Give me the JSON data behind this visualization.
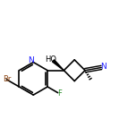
{
  "bg_color": "#ffffff",
  "line_color": "#000000",
  "line_width": 1.2,
  "figsize": [
    1.52,
    1.52
  ],
  "dpi": 100,
  "xlim": [
    0.5,
    7.5
  ],
  "ylim": [
    1.0,
    6.5
  ]
}
